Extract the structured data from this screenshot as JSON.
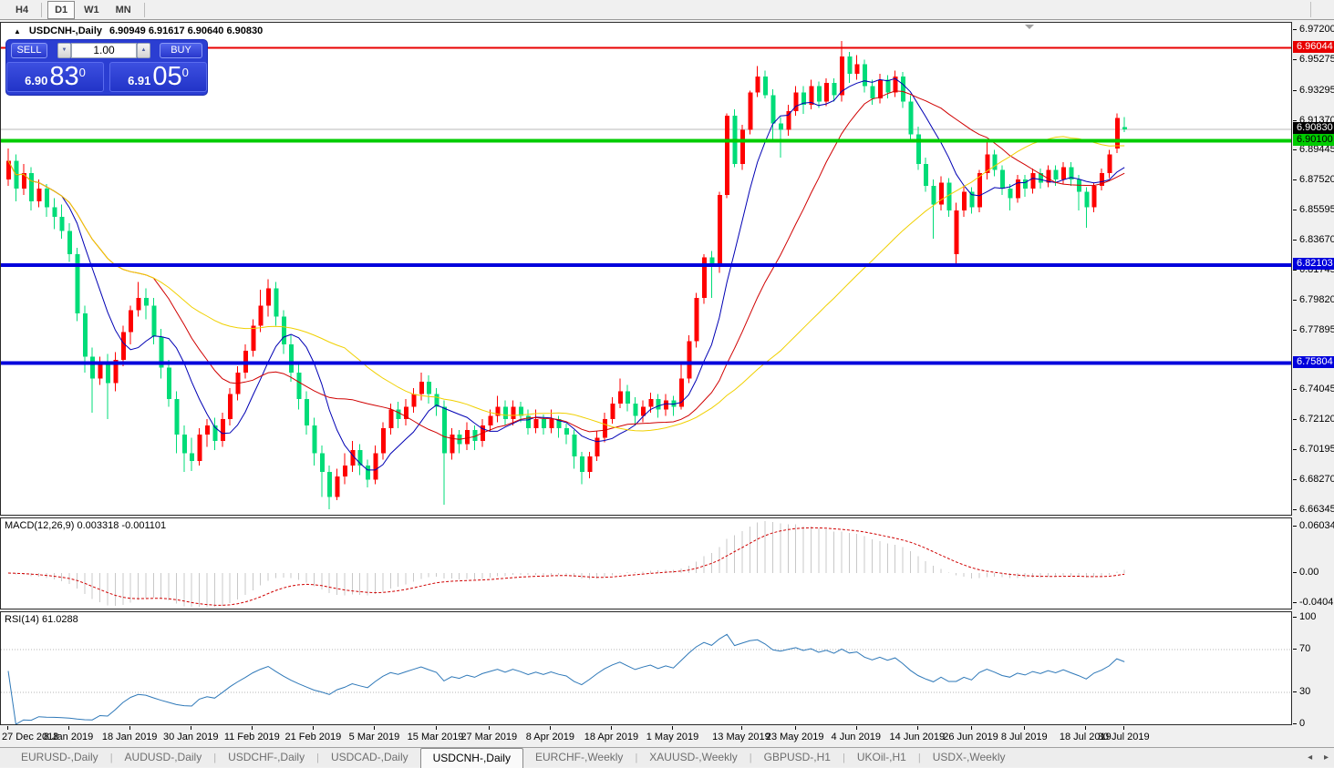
{
  "toolbar": {
    "timeframes": [
      {
        "label": "H4",
        "active": false
      },
      {
        "label": "D1",
        "active": true
      },
      {
        "label": "W1",
        "active": false
      },
      {
        "label": "MN",
        "active": false
      }
    ]
  },
  "icons": {
    "collapse": "▲",
    "volume_down": "▼",
    "volume_up": "▲",
    "scroll_left": "◂",
    "scroll_right": "▸"
  },
  "title": {
    "symbol": "USDCNH-,Daily",
    "ohlc": "6.90949 6.91617 6.90640 6.90830"
  },
  "trade_panel": {
    "sell_label": "SELL",
    "buy_label": "BUY",
    "volume": "1.00",
    "sell_price_prefix": "6.90",
    "sell_price_big": "83",
    "sell_price_sup": "0",
    "buy_price_prefix": "6.91",
    "buy_price_big": "05",
    "buy_price_sup": "0"
  },
  "price_axis": {
    "labels": [
      "6.97200",
      "6.95275",
      "6.93295",
      "6.91370",
      "6.89445",
      "6.87520",
      "6.85595",
      "6.83670",
      "6.81745",
      "6.79820",
      "6.77895",
      "6.74045",
      "6.72120",
      "6.70195",
      "6.68270",
      "6.66345"
    ],
    "badges": [
      {
        "text": "6.96044",
        "price": 6.96044,
        "bg": "#e80000",
        "fg": "#ffffff"
      },
      {
        "text": "6.90830",
        "price": 6.9083,
        "bg": "#000000",
        "fg": "#ffffff"
      },
      {
        "text": "6.90100",
        "price": 6.901,
        "bg": "#00cc00",
        "fg": "#000000"
      },
      {
        "text": "6.82103",
        "price": 6.82103,
        "bg": "#0000dc",
        "fg": "#ffffff"
      },
      {
        "text": "6.75804",
        "price": 6.75804,
        "bg": "#0000dc",
        "fg": "#ffffff"
      }
    ]
  },
  "chart_data": {
    "type": "candlestick",
    "symbol": "USDCNH",
    "timeframe": "Daily",
    "price_range": [
      6.66345,
      6.972
    ],
    "up_color": "#fe0000",
    "down_color": "#00dc78",
    "x_labels": [
      [
        "27 Dec 2018",
        0
      ],
      [
        "8 Jan 2019",
        8
      ],
      [
        "18 Jan 2019",
        16
      ],
      [
        "30 Jan 2019",
        24
      ],
      [
        "11 Feb 2019",
        32
      ],
      [
        "21 Feb 2019",
        40
      ],
      [
        "5 Mar 2019",
        48
      ],
      [
        "15 Mar 2019",
        56
      ],
      [
        "27 Mar 2019",
        63
      ],
      [
        "8 Apr 2019",
        71
      ],
      [
        "18 Apr 2019",
        79
      ],
      [
        "1 May 2019",
        87
      ],
      [
        "13 May 2019",
        96
      ],
      [
        "23 May 2019",
        103
      ],
      [
        "4 Jun 2019",
        111
      ],
      [
        "14 Jun 2019",
        119
      ],
      [
        "26 Jun 2019",
        126
      ],
      [
        "8 Jul 2019",
        133
      ],
      [
        "18 Jul 2019",
        141
      ],
      [
        "30 Jul 2019",
        146
      ]
    ],
    "hlines": [
      {
        "price": 6.9083,
        "color": "#b8b8b8",
        "width": 1,
        "behind": true
      },
      {
        "price": 6.96044,
        "color": "#e80000",
        "width": 2,
        "behind": false
      },
      {
        "price": 6.901,
        "color": "#00cc00",
        "width": 4,
        "behind": false
      },
      {
        "price": 6.82103,
        "color": "#0000dc",
        "width": 4,
        "behind": false
      },
      {
        "price": 6.75804,
        "color": "#0000dc",
        "width": 4,
        "behind": false
      }
    ],
    "moving_averages": [
      {
        "period": 8,
        "color": "#0000b4"
      },
      {
        "period": 20,
        "color": "#d00000"
      },
      {
        "period": 45,
        "color": "#f0d000"
      }
    ],
    "candles": [
      [
        6.876,
        6.896,
        6.872,
        6.888
      ],
      [
        6.888,
        6.892,
        6.862,
        6.87
      ],
      [
        6.87,
        6.886,
        6.866,
        6.88
      ],
      [
        6.88,
        6.884,
        6.856,
        6.862
      ],
      [
        6.862,
        6.876,
        6.858,
        6.87
      ],
      [
        6.87,
        6.873,
        6.852,
        6.858
      ],
      [
        6.858,
        6.864,
        6.844,
        6.852
      ],
      [
        6.852,
        6.86,
        6.838,
        6.843
      ],
      [
        6.843,
        6.848,
        6.823,
        6.828
      ],
      [
        6.828,
        6.832,
        6.785,
        6.79
      ],
      [
        6.79,
        6.795,
        6.752,
        6.762
      ],
      [
        6.762,
        6.768,
        6.726,
        6.748
      ],
      [
        6.748,
        6.762,
        6.744,
        6.758
      ],
      [
        6.758,
        6.764,
        6.722,
        6.745
      ],
      [
        6.745,
        6.765,
        6.74,
        6.76
      ],
      [
        6.76,
        6.782,
        6.756,
        6.778
      ],
      [
        6.778,
        6.795,
        6.77,
        6.792
      ],
      [
        6.792,
        6.81,
        6.788,
        6.8
      ],
      [
        6.8,
        6.806,
        6.786,
        6.795
      ],
      [
        6.795,
        6.8,
        6.77,
        6.775
      ],
      [
        6.775,
        6.78,
        6.748,
        6.755
      ],
      [
        6.755,
        6.76,
        6.73,
        6.735
      ],
      [
        6.735,
        6.74,
        6.7,
        6.712
      ],
      [
        6.712,
        6.718,
        6.688,
        6.7
      ],
      [
        6.7,
        6.71,
        6.6885,
        6.695
      ],
      [
        6.695,
        6.716,
        6.692,
        6.712
      ],
      [
        6.712,
        6.722,
        6.704,
        6.718
      ],
      [
        6.718,
        6.723,
        6.702,
        6.708
      ],
      [
        6.708,
        6.726,
        6.704,
        6.722
      ],
      [
        6.722,
        6.742,
        6.718,
        6.738
      ],
      [
        6.738,
        6.756,
        6.734,
        6.752
      ],
      [
        6.752,
        6.77,
        6.748,
        6.766
      ],
      [
        6.766,
        6.786,
        6.762,
        6.782
      ],
      [
        6.782,
        6.805,
        6.778,
        6.795
      ],
      [
        6.795,
        6.812,
        6.788,
        6.806
      ],
      [
        6.806,
        6.81,
        6.782,
        6.788
      ],
      [
        6.788,
        6.792,
        6.764,
        6.77
      ],
      [
        6.77,
        6.776,
        6.746,
        6.752
      ],
      [
        6.752,
        6.757,
        6.728,
        6.735
      ],
      [
        6.735,
        6.74,
        6.712,
        6.718
      ],
      [
        6.718,
        6.723,
        6.692,
        6.7
      ],
      [
        6.7,
        6.705,
        6.672,
        6.688
      ],
      [
        6.688,
        6.692,
        6.664,
        6.672
      ],
      [
        6.672,
        6.69,
        6.67,
        6.685
      ],
      [
        6.685,
        6.7,
        6.68,
        6.692
      ],
      [
        6.692,
        6.708,
        6.688,
        6.702
      ],
      [
        6.702,
        6.706,
        6.686,
        6.692
      ],
      [
        6.692,
        6.696,
        6.678,
        6.683
      ],
      [
        6.683,
        6.705,
        6.68,
        6.7
      ],
      [
        6.7,
        6.72,
        6.696,
        6.716
      ],
      [
        6.716,
        6.732,
        6.712,
        6.728
      ],
      [
        6.728,
        6.733,
        6.716,
        6.722
      ],
      [
        6.722,
        6.735,
        6.718,
        6.73
      ],
      [
        6.73,
        6.742,
        6.726,
        6.738
      ],
      [
        6.738,
        6.752,
        6.734,
        6.746
      ],
      [
        6.746,
        6.75,
        6.732,
        6.738
      ],
      [
        6.738,
        6.742,
        6.724,
        6.73
      ],
      [
        6.73,
        6.734,
        6.667,
        6.7
      ],
      [
        6.7,
        6.716,
        6.696,
        6.712
      ],
      [
        6.712,
        6.715,
        6.7,
        6.706
      ],
      [
        6.706,
        6.72,
        6.702,
        6.715
      ],
      [
        6.715,
        6.718,
        6.702,
        6.708
      ],
      [
        6.708,
        6.722,
        6.704,
        6.718
      ],
      [
        6.718,
        6.728,
        6.714,
        6.724
      ],
      [
        6.724,
        6.737,
        6.72,
        6.73
      ],
      [
        6.73,
        6.734,
        6.718,
        6.722
      ],
      [
        6.722,
        6.734,
        6.718,
        6.73
      ],
      [
        6.73,
        6.733,
        6.72,
        6.724
      ],
      [
        6.724,
        6.728,
        6.712,
        6.716
      ],
      [
        6.716,
        6.728,
        6.713,
        6.722
      ],
      [
        6.722,
        6.725,
        6.712,
        6.716
      ],
      [
        6.716,
        6.728,
        6.713,
        6.722
      ],
      [
        6.722,
        6.724,
        6.71,
        6.716
      ],
      [
        6.716,
        6.719,
        6.706,
        6.712
      ],
      [
        6.712,
        6.715,
        6.69,
        6.698
      ],
      [
        6.698,
        6.701,
        6.68,
        6.688
      ],
      [
        6.688,
        6.701,
        6.684,
        6.698
      ],
      [
        6.698,
        6.714,
        6.695,
        6.71
      ],
      [
        6.71,
        6.726,
        6.707,
        6.722
      ],
      [
        6.722,
        6.736,
        6.719,
        6.732
      ],
      [
        6.732,
        6.748,
        6.729,
        6.74
      ],
      [
        6.74,
        6.744,
        6.727,
        6.732
      ],
      [
        6.732,
        6.736,
        6.718,
        6.724
      ],
      [
        6.724,
        6.734,
        6.72,
        6.73
      ],
      [
        6.73,
        6.739,
        6.726,
        6.735
      ],
      [
        6.735,
        6.738,
        6.723,
        6.728
      ],
      [
        6.728,
        6.738,
        6.724,
        6.734
      ],
      [
        6.734,
        6.737,
        6.724,
        6.73
      ],
      [
        6.73,
        6.758,
        6.728,
        6.748
      ],
      [
        6.748,
        6.776,
        6.745,
        6.772
      ],
      [
        6.772,
        6.803,
        6.768,
        6.8
      ],
      [
        6.8,
        6.828,
        6.796,
        6.826
      ],
      [
        6.826,
        6.83,
        6.8,
        6.82
      ],
      [
        6.82,
        6.868,
        6.816,
        6.866
      ],
      [
        6.866,
        6.9185,
        6.864,
        6.917
      ],
      [
        6.917,
        6.921,
        6.884,
        6.886
      ],
      [
        6.886,
        6.911,
        6.882,
        6.908
      ],
      [
        6.908,
        6.933,
        6.905,
        6.932
      ],
      [
        6.932,
        6.949,
        6.929,
        6.942
      ],
      [
        6.942,
        6.946,
        6.928,
        6.93
      ],
      [
        6.93,
        6.934,
        6.902,
        6.912
      ],
      [
        6.912,
        6.916,
        6.89,
        6.908
      ],
      [
        6.908,
        6.924,
        6.904,
        6.92
      ],
      [
        6.92,
        6.936,
        6.917,
        6.932
      ],
      [
        6.932,
        6.936,
        6.918,
        6.924
      ],
      [
        6.924,
        6.94,
        6.921,
        6.936
      ],
      [
        6.936,
        6.939,
        6.922,
        6.926
      ],
      [
        6.926,
        6.941,
        6.923,
        6.938
      ],
      [
        6.938,
        6.941,
        6.926,
        6.93
      ],
      [
        6.93,
        6.965,
        6.926,
        6.955
      ],
      [
        6.955,
        6.958,
        6.938,
        6.944
      ],
      [
        6.944,
        6.956,
        6.94,
        6.95
      ],
      [
        6.95,
        6.953,
        6.932,
        6.936
      ],
      [
        6.936,
        6.94,
        6.924,
        6.928
      ],
      [
        6.928,
        6.944,
        6.925,
        6.94
      ],
      [
        6.94,
        6.943,
        6.928,
        6.932
      ],
      [
        6.932,
        6.946,
        6.929,
        6.942
      ],
      [
        6.942,
        6.945,
        6.922,
        6.926
      ],
      [
        6.926,
        6.93,
        6.9,
        6.905
      ],
      [
        6.905,
        6.91,
        6.882,
        6.886
      ],
      [
        6.886,
        6.89,
        6.868,
        6.872
      ],
      [
        6.872,
        6.876,
        6.838,
        6.86
      ],
      [
        6.86,
        6.878,
        6.856,
        6.874
      ],
      [
        6.874,
        6.877,
        6.852,
        6.856
      ],
      [
        6.828,
        6.861,
        6.8211,
        6.856
      ],
      [
        6.856,
        6.872,
        6.852,
        6.868
      ],
      [
        6.868,
        6.871,
        6.854,
        6.858
      ],
      [
        6.858,
        6.882,
        6.855,
        6.88
      ],
      [
        6.88,
        6.9,
        6.876,
        6.892
      ],
      [
        6.892,
        6.895,
        6.878,
        6.882
      ],
      [
        6.882,
        6.885,
        6.866,
        6.87
      ],
      [
        6.87,
        6.873,
        6.856,
        6.864
      ],
      [
        6.864,
        6.879,
        6.861,
        6.876
      ],
      [
        6.876,
        6.879,
        6.865,
        6.87
      ],
      [
        6.87,
        6.883,
        6.867,
        6.88
      ],
      [
        6.88,
        6.883,
        6.87,
        6.874
      ],
      [
        6.874,
        6.885,
        6.871,
        6.882
      ],
      [
        6.882,
        6.885,
        6.872,
        6.876
      ],
      [
        6.876,
        6.887,
        6.873,
        6.884
      ],
      [
        6.884,
        6.887,
        6.872,
        6.876
      ],
      [
        6.876,
        6.879,
        6.856,
        6.868
      ],
      [
        6.868,
        6.871,
        6.845,
        6.858
      ],
      [
        6.858,
        6.874,
        6.855,
        6.872
      ],
      [
        6.872,
        6.883,
        6.869,
        6.88
      ],
      [
        6.88,
        6.895,
        6.877,
        6.892
      ],
      [
        6.896,
        6.9185,
        6.893,
        6.9155
      ],
      [
        6.9095,
        6.9162,
        6.9064,
        6.9083
      ]
    ]
  },
  "macd": {
    "label": "MACD(12,26,9) 0.003318 -0.001101",
    "params": "12,26,9",
    "value": "0.003318",
    "signal_value": "-0.001101",
    "scale_labels": [
      "0.060342",
      "0.00",
      "-0.040415"
    ],
    "bar_color": "#c8c8c8",
    "signal_color": "#d00000"
  },
  "rsi": {
    "label": "RSI(14) 61.0288",
    "period": 14,
    "value": "61.0288",
    "scale_labels": [
      "100",
      "70",
      "30",
      "0"
    ],
    "levels": [
      70,
      30
    ],
    "line_color": "#2e78b8",
    "level_color": "#b4b4b4"
  },
  "tabs": {
    "items": [
      "EURUSD-,Daily",
      "AUDUSD-,Daily",
      "USDCHF-,Daily",
      "USDCAD-,Daily",
      "USDCNH-,Daily",
      "EURCHF-,Weekly",
      "XAUUSD-,Weekly",
      "GBPUSD-,H1",
      "UKOil-,H1",
      "USDX-,Weekly"
    ],
    "active_index": 4
  }
}
